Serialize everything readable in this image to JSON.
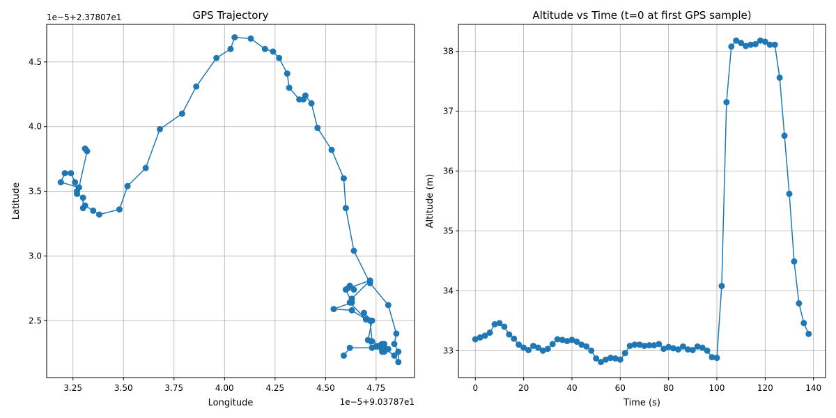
{
  "colors": {
    "series": "#1f77b4",
    "grid": "#b0b0b0",
    "axis": "#000000"
  },
  "chart_data": [
    {
      "type": "line",
      "title": "GPS Trajectory",
      "xlabel": "Longitude",
      "ylabel": "Latitude",
      "x_offset_label": "1e−5+9.03787e1",
      "y_offset_label": "1e−5+2.37807e1",
      "xlim": [
        3.12,
        4.94
      ],
      "ylim": [
        2.06,
        4.79
      ],
      "x_ticks": [
        "3.25",
        "3.50",
        "3.75",
        "4.00",
        "4.25",
        "4.50",
        "4.75"
      ],
      "x_tick_values": [
        3.25,
        3.5,
        3.75,
        4.0,
        4.25,
        4.5,
        4.75
      ],
      "y_ticks": [
        "2.5",
        "3.0",
        "3.5",
        "4.0",
        "4.5"
      ],
      "y_tick_values": [
        2.5,
        3.0,
        3.5,
        4.0,
        4.5
      ],
      "grid": true,
      "markers": true,
      "x": [
        4.59,
        4.62,
        4.78,
        4.76,
        4.78,
        4.78,
        4.75,
        4.73,
        4.71,
        4.73,
        4.69,
        4.7,
        4.63,
        4.54,
        4.63,
        4.6,
        4.62,
        4.64,
        4.61,
        4.72,
        4.63,
        4.62,
        4.7,
        4.72,
        4.73,
        4.77,
        4.79,
        4.79,
        4.78,
        4.79,
        4.81,
        4.78,
        4.84,
        4.86,
        4.86,
        4.84,
        4.85,
        4.81,
        4.72,
        4.64,
        4.6,
        4.59,
        4.53,
        4.46,
        4.43,
        4.4,
        4.39,
        4.37,
        4.32,
        4.31,
        4.27,
        4.24,
        4.2,
        4.13,
        4.05,
        4.03,
        3.96,
        3.86,
        3.79,
        3.68,
        3.61,
        3.52,
        3.48,
        3.38,
        3.35,
        3.31,
        3.3,
        3.3,
        3.27,
        3.27,
        3.26,
        3.24,
        3.21,
        3.19,
        3.28,
        3.32,
        3.31
      ],
      "y": [
        2.23,
        2.29,
        2.29,
        2.3,
        2.32,
        2.26,
        2.3,
        2.29,
        2.35,
        2.5,
        2.56,
        2.51,
        2.58,
        2.59,
        2.64,
        2.74,
        2.77,
        2.74,
        2.75,
        2.81,
        2.67,
        2.64,
        2.51,
        2.5,
        2.34,
        2.31,
        2.29,
        2.32,
        2.27,
        2.26,
        2.28,
        2.3,
        2.23,
        2.18,
        2.26,
        2.32,
        2.4,
        2.62,
        2.79,
        3.04,
        3.37,
        3.6,
        3.82,
        3.99,
        4.18,
        4.24,
        4.21,
        4.21,
        4.3,
        4.41,
        4.53,
        4.58,
        4.6,
        4.68,
        4.69,
        4.6,
        4.53,
        4.31,
        4.1,
        3.98,
        3.68,
        3.54,
        3.36,
        3.32,
        3.35,
        3.39,
        3.37,
        3.45,
        3.48,
        3.5,
        3.57,
        3.64,
        3.64,
        3.57,
        3.53,
        3.81,
        3.83
      ]
    },
    {
      "type": "line",
      "title": "Altitude vs Time (t=0 at first GPS sample)",
      "xlabel": "Time (s)",
      "ylabel": "Altitude (m)",
      "xlim": [
        -7,
        145
      ],
      "ylim": [
        32.55,
        38.45
      ],
      "x_ticks": [
        "0",
        "20",
        "40",
        "60",
        "80",
        "100",
        "120",
        "140"
      ],
      "x_tick_values": [
        0,
        20,
        40,
        60,
        80,
        100,
        120,
        140
      ],
      "y_ticks": [
        "33",
        "34",
        "35",
        "36",
        "37",
        "38"
      ],
      "y_tick_values": [
        33,
        34,
        35,
        36,
        37,
        38
      ],
      "grid": true,
      "markers": true,
      "x": [
        0,
        2,
        4,
        6,
        8,
        10,
        12,
        14,
        16,
        18,
        20,
        22,
        24,
        26,
        28,
        30,
        32,
        34,
        36,
        38,
        40,
        42,
        44,
        46,
        48,
        50,
        52,
        54,
        56,
        58,
        60,
        62,
        64,
        66,
        68,
        70,
        72,
        74,
        76,
        78,
        80,
        82,
        84,
        86,
        88,
        90,
        92,
        94,
        96,
        98,
        100,
        102,
        104,
        106,
        108,
        110,
        112,
        114,
        116,
        118,
        120,
        122,
        124,
        126,
        128,
        130,
        132,
        134,
        136,
        138
      ],
      "y": [
        33.19,
        33.22,
        33.25,
        33.3,
        33.44,
        33.46,
        33.4,
        33.27,
        33.2,
        33.1,
        33.05,
        33.01,
        33.08,
        33.05,
        33.0,
        33.03,
        33.11,
        33.19,
        33.18,
        33.16,
        33.18,
        33.15,
        33.1,
        33.07,
        33.0,
        32.87,
        32.81,
        32.85,
        32.88,
        32.87,
        32.85,
        32.96,
        33.08,
        33.1,
        33.1,
        33.08,
        33.09,
        33.09,
        33.11,
        33.03,
        33.06,
        33.04,
        33.02,
        33.07,
        33.02,
        33.01,
        33.07,
        33.05,
        33.0,
        32.89,
        32.88,
        34.08,
        37.15,
        38.08,
        38.18,
        38.14,
        38.09,
        38.11,
        38.12,
        38.18,
        38.16,
        38.11,
        38.11,
        37.56,
        36.59,
        35.62,
        34.49,
        33.79,
        33.46,
        33.28
      ]
    }
  ]
}
